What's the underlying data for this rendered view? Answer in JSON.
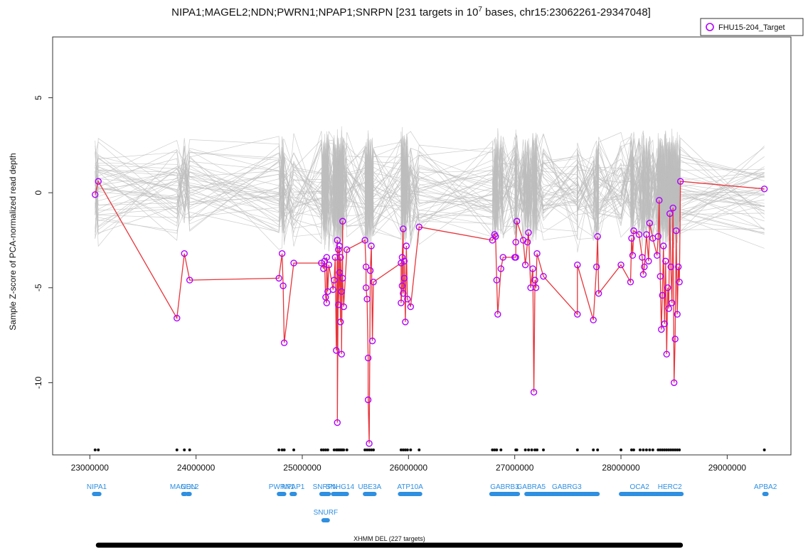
{
  "chart_data": {
    "type": "line",
    "title": "NIPA1;MAGEL2;NDN;PWRN1;NPAP1;SNRPN [231 targets in 10",
    "title_superscript": "7",
    "title_suffix": " bases, chr15:23062261-29347048]",
    "ylabel": "Sample Z-score of PCA-normalized read depth",
    "xlabel": "",
    "xlim": [
      22650000,
      29600000
    ],
    "ylim": [
      -13.8,
      8.2
    ],
    "xticks": [
      23000000,
      24000000,
      25000000,
      26000000,
      27000000,
      28000000,
      29000000
    ],
    "xtick_labels": [
      "23000000",
      "24000000",
      "25000000",
      "26000000",
      "27000000",
      "28000000",
      "29000000"
    ],
    "yticks": [
      5,
      0,
      -5,
      -10
    ],
    "ytick_labels": [
      "5",
      "0",
      "-5",
      "-10"
    ],
    "legend": {
      "label": "FHU15-204_Target",
      "position": "top-right",
      "marker_color": "#b000ff"
    },
    "target_color": "#e8343a",
    "background_color": "#bdbdbd",
    "gene_color": "#2f8fe0",
    "target_series": {
      "name": "FHU15-204_Target",
      "points": [
        [
          23050000,
          -0.1
        ],
        [
          23080000,
          0.6
        ],
        [
          23820000,
          -6.6
        ],
        [
          23890000,
          -3.2
        ],
        [
          23940000,
          -4.6
        ],
        [
          24780000,
          -4.5
        ],
        [
          24810000,
          -3.2
        ],
        [
          24820000,
          -4.9
        ],
        [
          24830000,
          -7.9
        ],
        [
          24920000,
          -3.7
        ],
        [
          25180000,
          -3.7
        ],
        [
          25200000,
          -4.0
        ],
        [
          25210000,
          -3.6
        ],
        [
          25220000,
          -5.5
        ],
        [
          25230000,
          -5.8
        ],
        [
          25230000,
          -3.4
        ],
        [
          25240000,
          -5.2
        ],
        [
          25250000,
          -3.8
        ],
        [
          25290000,
          -5.1
        ],
        [
          25300000,
          -4.6
        ],
        [
          25310000,
          -3.4
        ],
        [
          25320000,
          -8.3
        ],
        [
          25330000,
          -2.5
        ],
        [
          25330000,
          -12.1
        ],
        [
          25340000,
          -3.0
        ],
        [
          25340000,
          -5.9
        ],
        [
          25350000,
          -4.2
        ],
        [
          25350000,
          -2.8
        ],
        [
          25360000,
          -6.8
        ],
        [
          25360000,
          -3.4
        ],
        [
          25370000,
          -5.2
        ],
        [
          25370000,
          -8.5
        ],
        [
          25380000,
          -1.5
        ],
        [
          25380000,
          -4.5
        ],
        [
          25390000,
          -6.0
        ],
        [
          25420000,
          -3.0
        ],
        [
          25590000,
          -2.5
        ],
        [
          25600000,
          -3.9
        ],
        [
          25600000,
          -5.0
        ],
        [
          25610000,
          -5.6
        ],
        [
          25620000,
          -8.7
        ],
        [
          25620000,
          -10.9
        ],
        [
          25630000,
          -13.2
        ],
        [
          25640000,
          -4.1
        ],
        [
          25650000,
          -2.8
        ],
        [
          25660000,
          -7.8
        ],
        [
          25670000,
          -4.7
        ],
        [
          25930000,
          -3.7
        ],
        [
          25930000,
          -5.8
        ],
        [
          25940000,
          -4.9
        ],
        [
          25940000,
          -3.4
        ],
        [
          25950000,
          -1.9
        ],
        [
          25950000,
          -5.3
        ],
        [
          25960000,
          -4.5
        ],
        [
          25960000,
          -3.6
        ],
        [
          25970000,
          -6.8
        ],
        [
          25980000,
          -2.8
        ],
        [
          25990000,
          -5.6
        ],
        [
          26020000,
          -6.0
        ],
        [
          26100000,
          -1.8
        ],
        [
          26790000,
          -2.5
        ],
        [
          26810000,
          -2.2
        ],
        [
          26820000,
          -2.3
        ],
        [
          26830000,
          -4.6
        ],
        [
          26840000,
          -6.4
        ],
        [
          26870000,
          -4.0
        ],
        [
          26890000,
          -3.4
        ],
        [
          27000000,
          -3.4
        ],
        [
          27010000,
          -3.4
        ],
        [
          27010000,
          -2.6
        ],
        [
          27020000,
          -1.5
        ],
        [
          27080000,
          -2.5
        ],
        [
          27100000,
          -3.8
        ],
        [
          27120000,
          -2.6
        ],
        [
          27130000,
          -2.1
        ],
        [
          27150000,
          -5.0
        ],
        [
          27170000,
          -4.0
        ],
        [
          27180000,
          -10.5
        ],
        [
          27190000,
          -4.6
        ],
        [
          27200000,
          -5.0
        ],
        [
          27210000,
          -3.2
        ],
        [
          27270000,
          -4.4
        ],
        [
          27590000,
          -6.4
        ],
        [
          27590000,
          -3.8
        ],
        [
          27740000,
          -6.7
        ],
        [
          27770000,
          -3.9
        ],
        [
          27780000,
          -2.3
        ],
        [
          27790000,
          -5.3
        ],
        [
          28000000,
          -3.8
        ],
        [
          28090000,
          -4.7
        ],
        [
          28100000,
          -2.4
        ],
        [
          28110000,
          -3.3
        ],
        [
          28120000,
          -2.0
        ],
        [
          28170000,
          -2.2
        ],
        [
          28200000,
          -3.4
        ],
        [
          28210000,
          -4.3
        ],
        [
          28220000,
          -3.9
        ],
        [
          28240000,
          -2.2
        ],
        [
          28260000,
          -3.6
        ],
        [
          28270000,
          -1.6
        ],
        [
          28300000,
          -2.4
        ],
        [
          28340000,
          -3.3
        ],
        [
          28350000,
          -2.3
        ],
        [
          28360000,
          -0.4
        ],
        [
          28370000,
          -4.4
        ],
        [
          28380000,
          -7.2
        ],
        [
          28390000,
          -5.4
        ],
        [
          28400000,
          -2.8
        ],
        [
          28410000,
          -6.9
        ],
        [
          28420000,
          -3.6
        ],
        [
          28430000,
          -8.5
        ],
        [
          28440000,
          -5.0
        ],
        [
          28450000,
          -6.1
        ],
        [
          28460000,
          -1.1
        ],
        [
          28470000,
          -3.9
        ],
        [
          28480000,
          -5.8
        ],
        [
          28490000,
          -0.8
        ],
        [
          28500000,
          -10.0
        ],
        [
          28510000,
          -7.7
        ],
        [
          28520000,
          -2.0
        ],
        [
          28530000,
          -6.4
        ],
        [
          28540000,
          -3.9
        ],
        [
          28550000,
          -4.7
        ],
        [
          28560000,
          0.6
        ],
        [
          29350000,
          0.2
        ]
      ]
    },
    "probe_positions": [
      23050000,
      23080000,
      23820000,
      23890000,
      23940000,
      24780000,
      24810000,
      24830000,
      24920000,
      25180000,
      25200000,
      25220000,
      25240000,
      25300000,
      25320000,
      25330000,
      25340000,
      25350000,
      25360000,
      25370000,
      25380000,
      25390000,
      25420000,
      25590000,
      25610000,
      25630000,
      25650000,
      25670000,
      25930000,
      25950000,
      25970000,
      25990000,
      26020000,
      26100000,
      26790000,
      26810000,
      26830000,
      26870000,
      27010000,
      27020000,
      27100000,
      27130000,
      27160000,
      27190000,
      27210000,
      27270000,
      27590000,
      27740000,
      27780000,
      28000000,
      28100000,
      28120000,
      28180000,
      28210000,
      28240000,
      28270000,
      28300000,
      28350000,
      28370000,
      28390000,
      28410000,
      28430000,
      28450000,
      28470000,
      28490000,
      28510000,
      28530000,
      28550000,
      29350000
    ],
    "genes": [
      {
        "name": "NIPA1",
        "start": 23040000,
        "end": 23090000,
        "row": 1
      },
      {
        "name": "MAGEL2",
        "start": 23880000,
        "end": 23900000,
        "row": 1
      },
      {
        "name": "NDN",
        "start": 23920000,
        "end": 23940000,
        "row": 1
      },
      {
        "name": "PWRN1",
        "start": 24780000,
        "end": 24830000,
        "row": 1
      },
      {
        "name": "NPAP1",
        "start": 24900000,
        "end": 24930000,
        "row": 1
      },
      {
        "name": "SNRPN",
        "start": 25180000,
        "end": 25250000,
        "row": 1
      },
      {
        "name": "SNHG14",
        "start": 25290000,
        "end": 25420000,
        "row": 1
      },
      {
        "name": "UBE3A",
        "start": 25590000,
        "end": 25680000,
        "row": 1
      },
      {
        "name": "ATP10A",
        "start": 25920000,
        "end": 26110000,
        "row": 1
      },
      {
        "name": "GABRB3",
        "start": 26780000,
        "end": 27030000,
        "row": 1
      },
      {
        "name": "GABRA5",
        "start": 27110000,
        "end": 27200000,
        "row": 1
      },
      {
        "name": "GABRG3",
        "start": 27200000,
        "end": 27780000,
        "row": 1
      },
      {
        "name": "OCA2",
        "start": 28000000,
        "end": 28350000,
        "row": 1
      },
      {
        "name": "HERC2",
        "start": 28350000,
        "end": 28570000,
        "row": 1
      },
      {
        "name": "APBA2",
        "start": 29350000,
        "end": 29360000,
        "row": 1
      },
      {
        "name": "SNURF",
        "start": 25200000,
        "end": 25240000,
        "row": 2
      }
    ],
    "cnv_calls": [
      {
        "label": "XHMM DEL (227 targets)",
        "start": 23080000,
        "end": 28560000
      }
    ]
  }
}
